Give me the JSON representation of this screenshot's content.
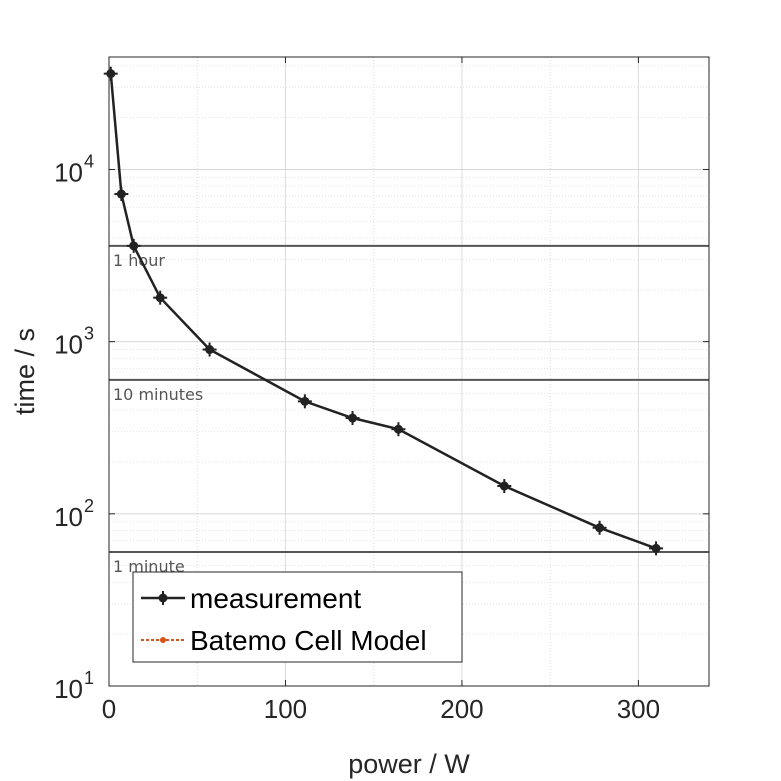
{
  "chart_data": {
    "type": "line",
    "xlabel": "power / W",
    "ylabel": "time / s",
    "xlim": [
      0,
      340
    ],
    "ylim": [
      10,
      45000
    ],
    "yscale": "log",
    "grid": true,
    "x_ticks": [
      0,
      100,
      200,
      300
    ],
    "y_ticks": [
      {
        "value": 10,
        "base": "10",
        "exp": "1"
      },
      {
        "value": 100,
        "base": "10",
        "exp": "2"
      },
      {
        "value": 1000,
        "base": "10",
        "exp": "3"
      },
      {
        "value": 10000,
        "base": "10",
        "exp": "4"
      }
    ],
    "reference_lines": [
      {
        "y": 3600,
        "label": "1 hour",
        "color": "#555555"
      },
      {
        "y": 600,
        "label": "10 minutes",
        "color": "#555555"
      },
      {
        "y": 60,
        "label": "1 minute",
        "color": "#555555"
      }
    ],
    "series": [
      {
        "name": "measurement",
        "color": "#222222",
        "marker": "circle",
        "x": [
          1,
          7,
          14,
          29,
          57,
          111,
          138,
          164,
          224,
          278,
          310
        ],
        "y": [
          36000,
          7200,
          3600,
          1800,
          900,
          450,
          360,
          310,
          145,
          83,
          63
        ]
      },
      {
        "name": "Batemo Cell Model",
        "color": "#d95319",
        "marker": "dot",
        "dashed": true,
        "x": [],
        "y": []
      }
    ],
    "legend_position": "bottom-left"
  }
}
